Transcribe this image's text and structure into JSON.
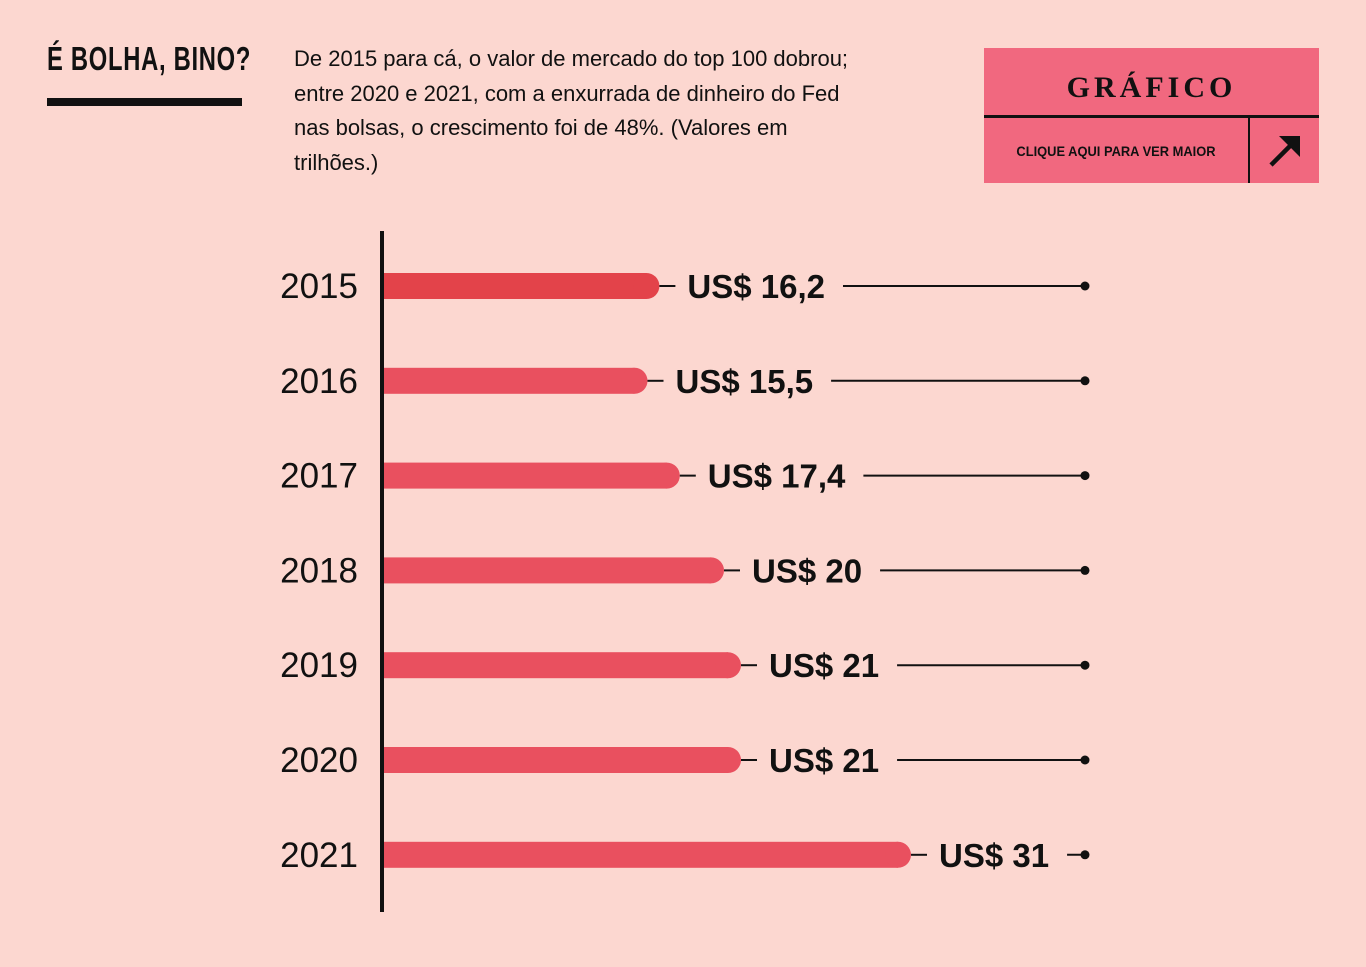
{
  "header": {
    "title": "É BOLHA, BINO?",
    "subtitle": "De 2015 para cá, o valor de mercado do top 100 dobrou; entre 2020 e 2021, com a enxurrada de dinheiro do Fed nas bolsas, o crescimento foi de 48%. (Valores em trilhões.)"
  },
  "cta": {
    "label": "GRÁFICO",
    "sublabel": "CLIQUE AQUI PARA VER MAIOR",
    "icon": "arrow-up-right-icon"
  },
  "colors": {
    "background": "#fcd7d0",
    "bar": "#e9505f",
    "bar_first": "#e3434a",
    "cta": "#f1687f",
    "ink": "#111111"
  },
  "chart_data": {
    "type": "bar",
    "orientation": "horizontal",
    "categories": [
      "2015",
      "2016",
      "2017",
      "2018",
      "2019",
      "2020",
      "2021"
    ],
    "values": [
      16.2,
      15.5,
      17.4,
      20,
      21,
      21,
      31
    ],
    "labels": [
      "US$ 16,2",
      "US$ 15,5",
      "US$ 17,4",
      "US$ 20",
      "US$ 21",
      "US$ 21",
      "US$ 31"
    ],
    "xlim": [
      0,
      31
    ],
    "grid": false,
    "legend": "none"
  }
}
